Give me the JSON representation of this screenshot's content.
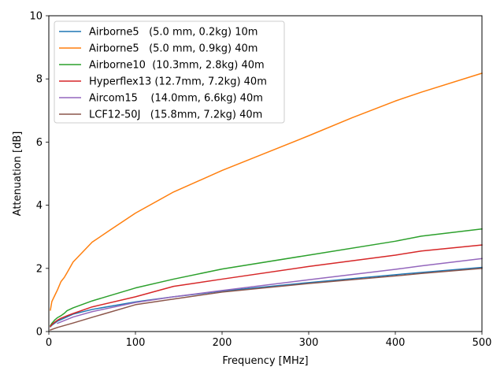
{
  "chart_data": {
    "type": "line",
    "title": "",
    "xlabel": "Frequency [MHz]",
    "ylabel": "Attenuation [dB]",
    "xlim": [
      0,
      500
    ],
    "ylim": [
      0,
      10
    ],
    "x_ticks": [
      "0",
      "100",
      "200",
      "300",
      "400",
      "500"
    ],
    "y_ticks": [
      "0",
      "2",
      "4",
      "6",
      "8",
      "10"
    ],
    "grid": false,
    "legend_position": "top-left",
    "series": [
      {
        "name": "Airborne5   (5.0 mm, 0.2kg) 10m",
        "color": "#1f77b4",
        "points": [
          [
            1.8,
            0.15
          ],
          [
            3.5,
            0.2
          ],
          [
            10,
            0.33
          ],
          [
            28,
            0.55
          ],
          [
            50,
            0.7
          ],
          [
            100,
            0.94
          ],
          [
            144,
            1.1
          ],
          [
            200,
            1.28
          ],
          [
            300,
            1.55
          ],
          [
            400,
            1.8
          ],
          [
            430,
            1.87
          ],
          [
            500,
            2.03
          ]
        ]
      },
      {
        "name": "Airborne5   (5.0 mm, 0.9kg) 40m",
        "color": "#ff7f0e",
        "points": [
          [
            1.8,
            0.68
          ],
          [
            3.5,
            0.95
          ],
          [
            7,
            1.15
          ],
          [
            10,
            1.32
          ],
          [
            14,
            1.58
          ],
          [
            18,
            1.72
          ],
          [
            21,
            1.86
          ],
          [
            28,
            2.2
          ],
          [
            50,
            2.83
          ],
          [
            70,
            3.2
          ],
          [
            100,
            3.75
          ],
          [
            144,
            4.42
          ],
          [
            200,
            5.1
          ],
          [
            250,
            5.65
          ],
          [
            300,
            6.2
          ],
          [
            350,
            6.77
          ],
          [
            400,
            7.3
          ],
          [
            430,
            7.58
          ],
          [
            500,
            8.18
          ]
        ]
      },
      {
        "name": "Airborne10  (10.3mm, 2.8kg) 40m",
        "color": "#2ca02c",
        "points": [
          [
            1.8,
            0.19
          ],
          [
            3.5,
            0.26
          ],
          [
            7,
            0.37
          ],
          [
            10,
            0.44
          ],
          [
            14,
            0.5
          ],
          [
            18,
            0.58
          ],
          [
            21,
            0.66
          ],
          [
            28,
            0.75
          ],
          [
            50,
            0.97
          ],
          [
            100,
            1.38
          ],
          [
            144,
            1.66
          ],
          [
            200,
            1.98
          ],
          [
            300,
            2.42
          ],
          [
            400,
            2.86
          ],
          [
            430,
            3.02
          ],
          [
            500,
            3.25
          ]
        ]
      },
      {
        "name": "Hyperflex13 (12.7mm, 7.2kg) 40m",
        "color": "#d62728",
        "points": [
          [
            1.8,
            0.16
          ],
          [
            3.5,
            0.22
          ],
          [
            7,
            0.3
          ],
          [
            10,
            0.36
          ],
          [
            14,
            0.42
          ],
          [
            21,
            0.5
          ],
          [
            28,
            0.57
          ],
          [
            50,
            0.78
          ],
          [
            100,
            1.1
          ],
          [
            144,
            1.43
          ],
          [
            200,
            1.66
          ],
          [
            300,
            2.06
          ],
          [
            400,
            2.42
          ],
          [
            430,
            2.55
          ],
          [
            500,
            2.74
          ]
        ]
      },
      {
        "name": "Aircom15    (14.0mm, 6.6kg) 40m",
        "color": "#9467bd",
        "points": [
          [
            10,
            0.26
          ],
          [
            28,
            0.46
          ],
          [
            50,
            0.63
          ],
          [
            100,
            0.92
          ],
          [
            144,
            1.1
          ],
          [
            200,
            1.3
          ],
          [
            300,
            1.64
          ],
          [
            400,
            1.97
          ],
          [
            430,
            2.08
          ],
          [
            500,
            2.31
          ]
        ]
      },
      {
        "name": "LCF12-50J   (15.8mm, 7.2kg) 40m",
        "color": "#8c564b",
        "points": [
          [
            1.8,
            0.05
          ],
          [
            10,
            0.13
          ],
          [
            28,
            0.27
          ],
          [
            50,
            0.45
          ],
          [
            100,
            0.85
          ],
          [
            144,
            1.03
          ],
          [
            200,
            1.25
          ],
          [
            300,
            1.52
          ],
          [
            400,
            1.76
          ],
          [
            430,
            1.84
          ],
          [
            500,
            2.0
          ]
        ]
      }
    ]
  }
}
